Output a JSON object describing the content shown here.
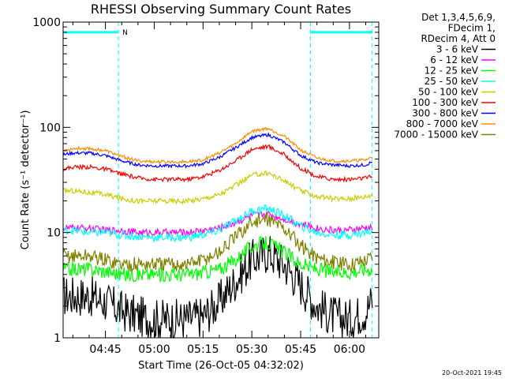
{
  "header": {
    "title": "RHESSI Observing Summary Count Rates",
    "timestamp": "20-Oct-2021 19:45"
  },
  "chart_data": {
    "type": "line",
    "title": "RHESSI Observing Summary Count Rates",
    "xlabel": "Start Time (26-Oct-05 04:32:02)",
    "ylabel": "Count Rate (s⁻¹ detector⁻¹)",
    "yscale": "log",
    "ylim": [
      1,
      1000
    ],
    "xlim": [
      "04:32",
      "06:09"
    ],
    "x_tick_labels": [
      "04:45",
      "05:00",
      "05:15",
      "05:30",
      "05:45",
      "06:00"
    ],
    "y_tick_labels": [
      "1",
      "10",
      "100",
      "1000"
    ],
    "legend_header": [
      "Det 1,3,4,5,6,9,",
      "FDecim 1,",
      "RDecim 4, Att 0"
    ],
    "legend_position": "outside-right",
    "markers": {
      "vlines": [
        "04:32",
        "04:49",
        "05:48",
        "06:07"
      ],
      "bars": [
        {
          "start": "04:32",
          "end": "04:49",
          "level": 800
        },
        {
          "start": "05:48",
          "end": "06:07",
          "level": 800
        }
      ],
      "bar_label": "N",
      "color": "#00ffff"
    },
    "x": [
      "04:32",
      "04:35",
      "04:40",
      "04:45",
      "04:50",
      "04:55",
      "05:00",
      "05:05",
      "05:10",
      "05:15",
      "05:20",
      "05:25",
      "05:30",
      "05:35",
      "05:40",
      "05:45",
      "05:50",
      "05:55",
      "06:00",
      "06:05",
      "06:07"
    ],
    "series": [
      {
        "name": "3 - 6 keV",
        "color": "#000000",
        "values": [
          2.5,
          2.5,
          2.5,
          2.2,
          1.8,
          1.6,
          1.5,
          1.5,
          1.5,
          1.6,
          2.2,
          3.5,
          5.5,
          6.5,
          5.0,
          3.2,
          2.0,
          1.6,
          1.5,
          1.8,
          2.3
        ]
      },
      {
        "name": "6 - 12 keV",
        "color": "#ff00ff",
        "values": [
          11,
          11,
          11,
          10.5,
          10.5,
          10,
          10,
          10,
          10,
          10.5,
          11,
          12.5,
          14.5,
          15,
          13.5,
          12,
          11,
          10.5,
          10.5,
          11,
          11
        ]
      },
      {
        "name": "12 - 25 keV",
        "color": "#00ff00",
        "values": [
          4.5,
          4.5,
          4.5,
          4.3,
          4,
          4,
          4,
          4,
          4,
          4.2,
          4.5,
          5.5,
          7.5,
          8,
          6.5,
          5,
          4.5,
          4.2,
          4.2,
          4.5,
          4.5
        ]
      },
      {
        "name": "25 - 50 keV",
        "color": "#00ffff",
        "values": [
          10.5,
          10.5,
          10,
          10,
          9.5,
          9.2,
          9,
          9,
          9,
          9.5,
          10.5,
          13,
          16,
          17,
          14.5,
          11.5,
          10,
          9.5,
          9.5,
          10,
          10.5
        ]
      },
      {
        "name": "50 - 100 keV",
        "color": "#cccc00",
        "values": [
          25,
          25,
          24,
          23,
          21,
          20,
          20,
          20,
          20,
          21,
          23,
          28,
          35,
          37,
          31,
          25,
          22,
          21,
          21,
          22,
          23
        ]
      },
      {
        "name": "100 - 300 keV",
        "color": "#ff0000",
        "values": [
          40,
          42,
          42,
          40,
          36,
          33,
          32,
          32,
          32,
          34,
          39,
          48,
          62,
          66,
          55,
          41,
          34,
          32,
          32,
          33,
          34
        ]
      },
      {
        "name": "300 - 800 keV",
        "color": "#0000ff",
        "values": [
          55,
          57,
          57,
          54,
          48,
          44,
          43,
          43,
          43,
          45,
          52,
          64,
          80,
          85,
          72,
          54,
          46,
          44,
          43,
          44,
          47
        ]
      },
      {
        "name": "800 - 7000 keV",
        "color": "#ff8c00",
        "values": [
          60,
          63,
          63,
          60,
          53,
          48,
          47,
          47,
          47,
          49,
          57,
          70,
          92,
          98,
          82,
          61,
          51,
          48,
          48,
          49,
          52
        ]
      },
      {
        "name": "7000 - 15000 keV",
        "color": "#808000",
        "values": [
          6,
          6,
          6,
          5.5,
          5,
          5,
          5,
          5,
          5,
          5.5,
          6.5,
          9,
          12.5,
          13.5,
          11,
          7.5,
          5.8,
          5.2,
          5,
          5.5,
          6
        ]
      }
    ]
  }
}
